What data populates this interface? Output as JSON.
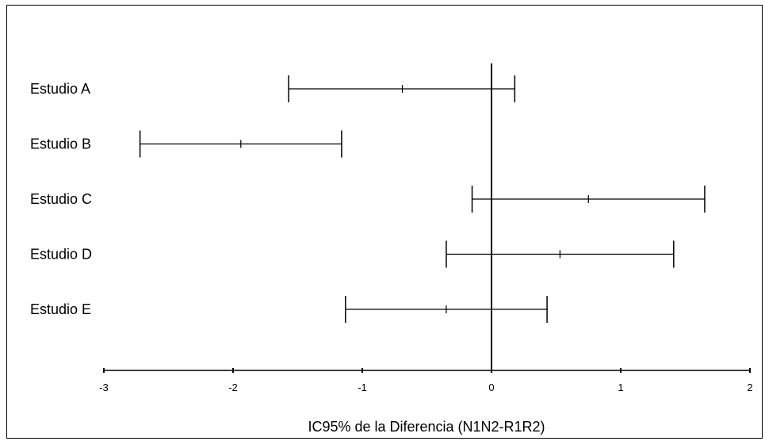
{
  "chart_data": {
    "type": "forest",
    "title": "",
    "xlabel": "IC95% de la Diferencia (N1N2-R1R2)",
    "ylabel": "",
    "xlim": [
      -3,
      2
    ],
    "xticks": [
      -3,
      -2,
      -1,
      0,
      1,
      2
    ],
    "xtick_labels": [
      "-3",
      "-2",
      "-1",
      "0",
      "1",
      "2"
    ],
    "reference_line": 0,
    "grid": false,
    "legend": "none",
    "studies": [
      {
        "label": "Estudio A",
        "lower": -1.57,
        "estimate": -0.69,
        "upper": 0.18
      },
      {
        "label": "Estudio B",
        "lower": -2.72,
        "estimate": -1.94,
        "upper": -1.16
      },
      {
        "label": "Estudio C",
        "lower": -0.15,
        "estimate": 0.75,
        "upper": 1.65
      },
      {
        "label": "Estudio D",
        "lower": -0.35,
        "estimate": 0.53,
        "upper": 1.41
      },
      {
        "label": "Estudio E",
        "lower": -1.13,
        "estimate": -0.35,
        "upper": 0.43
      }
    ],
    "colors": {
      "line": "#000000",
      "background": "#ffffff"
    }
  }
}
